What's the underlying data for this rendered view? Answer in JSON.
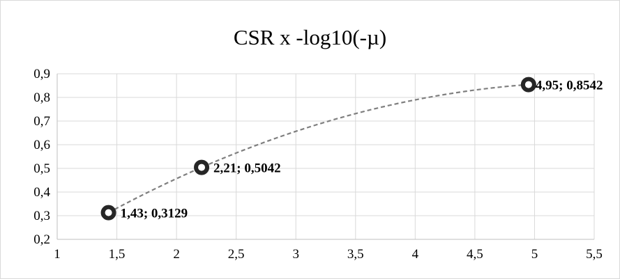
{
  "chart_data": {
    "type": "scatter",
    "title": "CSR x -log10(-µ)",
    "xlabel": "",
    "ylabel": "",
    "xlim": [
      1,
      5.5
    ],
    "ylim": [
      0.2,
      0.9
    ],
    "x_ticks": [
      "1",
      "1,5",
      "2",
      "2,5",
      "3",
      "3,5",
      "4",
      "4,5",
      "5",
      "5,5"
    ],
    "y_ticks": [
      "0,2",
      "0,3",
      "0,4",
      "0,5",
      "0,6",
      "0,7",
      "0,8",
      "0,9"
    ],
    "x_tick_values": [
      1,
      1.5,
      2,
      2.5,
      3,
      3.5,
      4,
      4.5,
      5,
      5.5
    ],
    "y_tick_values": [
      0.2,
      0.3,
      0.4,
      0.5,
      0.6,
      0.7,
      0.8,
      0.9
    ],
    "grid": "vertical and horizontal major gridlines",
    "legend": "none",
    "trendline": "dashed polynomial curve",
    "series": [
      {
        "points": [
          {
            "x": 1.43,
            "y": 0.3129,
            "label": "1,43; 0,3129"
          },
          {
            "x": 2.21,
            "y": 0.5042,
            "label": "2,21; 0,5042"
          },
          {
            "x": 4.95,
            "y": 0.8542,
            "label": "4,95; 0,8542"
          }
        ]
      }
    ],
    "colors": {
      "marker": "#262626",
      "trendline": "#7f7f7f",
      "grid": "#d9d9d9",
      "axis": "#bfbfbf"
    }
  }
}
